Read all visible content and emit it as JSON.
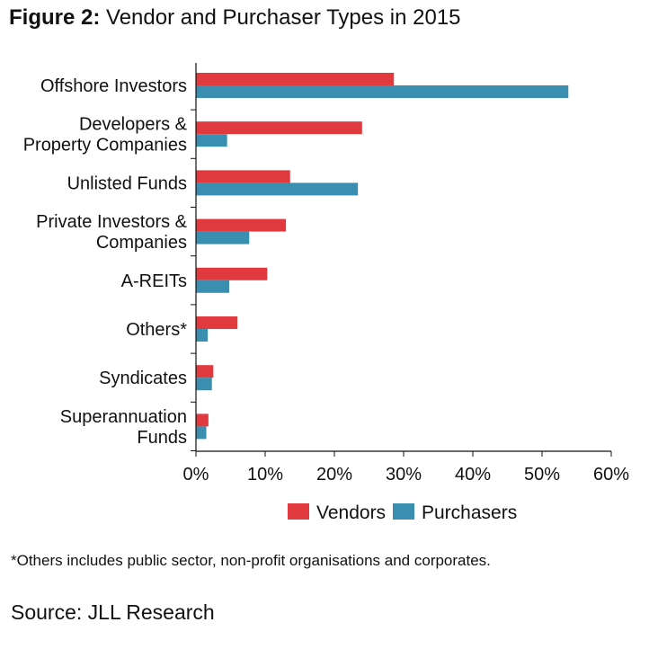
{
  "header": {
    "prefix": "Figure 2:",
    "title": "Vendor and Purchaser Types in 2015"
  },
  "chart_data": {
    "type": "bar",
    "orientation": "horizontal",
    "categories": [
      "Offshore Investors",
      "Developers & Property Companies",
      "Unlisted Funds",
      "Private Investors & Companies",
      "A-REITs",
      "Others*",
      "Syndicates",
      "Superannuation Funds"
    ],
    "category_lines": [
      [
        "Offshore Investors"
      ],
      [
        "Developers &",
        "Property Companies"
      ],
      [
        "Unlisted Funds"
      ],
      [
        "Private Investors &",
        "Companies"
      ],
      [
        "A-REITs"
      ],
      [
        "Others*"
      ],
      [
        "Syndicates"
      ],
      [
        "Superannuation",
        "Funds"
      ]
    ],
    "series": [
      {
        "name": "Vendors",
        "color": "#e03a3e",
        "values": [
          28.6,
          24.0,
          13.6,
          13.0,
          10.3,
          6.0,
          2.5,
          1.8
        ]
      },
      {
        "name": "Purchasers",
        "color": "#3a8fb0",
        "values": [
          53.8,
          4.5,
          23.4,
          7.7,
          4.8,
          1.7,
          2.3,
          1.5
        ]
      }
    ],
    "xlim": [
      0,
      60
    ],
    "xticks": [
      "0%",
      "10%",
      "20%",
      "30%",
      "40%",
      "50%",
      "60%"
    ],
    "xtick_values": [
      0,
      10,
      20,
      30,
      40,
      50,
      60
    ],
    "legend_position": "bottom",
    "grid": false
  },
  "footnote": "*Others includes public sector, non-profit organisations and corporates.",
  "source": "Source: JLL Research"
}
